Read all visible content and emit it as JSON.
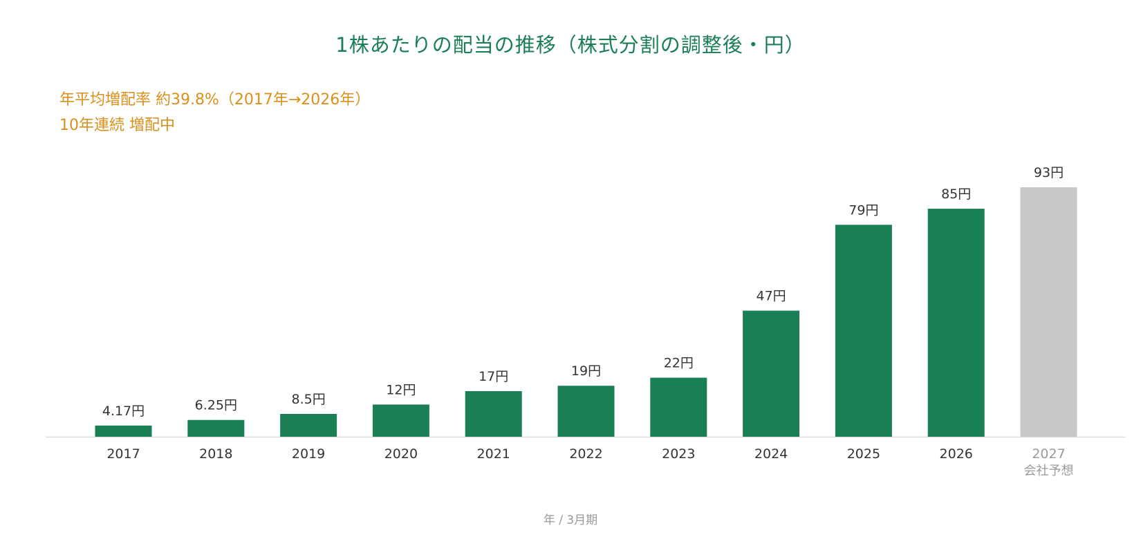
{
  "chart_data": {
    "type": "bar",
    "title": "1株あたりの配当の推移（株式分割の調整後・円）",
    "annotations": [
      "年平均増配率 約39.8%（2017年→2026年）",
      "10年連続 増配中"
    ],
    "xlabel": "年 / 3月期",
    "ylabel": "",
    "unit": "円",
    "categories": [
      "2017",
      "2018",
      "2019",
      "2020",
      "2021",
      "2022",
      "2023",
      "2024",
      "2025",
      "2026",
      "2027"
    ],
    "category_sublabels": [
      "",
      "",
      "",
      "",
      "",
      "",
      "",
      "",
      "",
      "",
      "会社予想"
    ],
    "values": [
      4.17,
      6.25,
      8.5,
      12,
      17,
      19,
      22,
      47,
      79,
      85,
      93
    ],
    "value_labels": [
      "4.17円",
      "6.25円",
      "8.5円",
      "12円",
      "17円",
      "19円",
      "22円",
      "47円",
      "79円",
      "85円",
      "93円"
    ],
    "forecast": [
      false,
      false,
      false,
      false,
      false,
      false,
      false,
      false,
      false,
      false,
      true
    ],
    "ylim": [
      0,
      93
    ],
    "grid": false,
    "legend": "none",
    "colors": {
      "actual": "#1b7f55",
      "forecast": "#c8c8c8",
      "title": "#1b7f55",
      "annotation": "#d9901c",
      "value_label": "#333333",
      "tick_label": "#333333",
      "forecast_label": "#9a9a9a",
      "axis_line": "#dddddd"
    }
  }
}
